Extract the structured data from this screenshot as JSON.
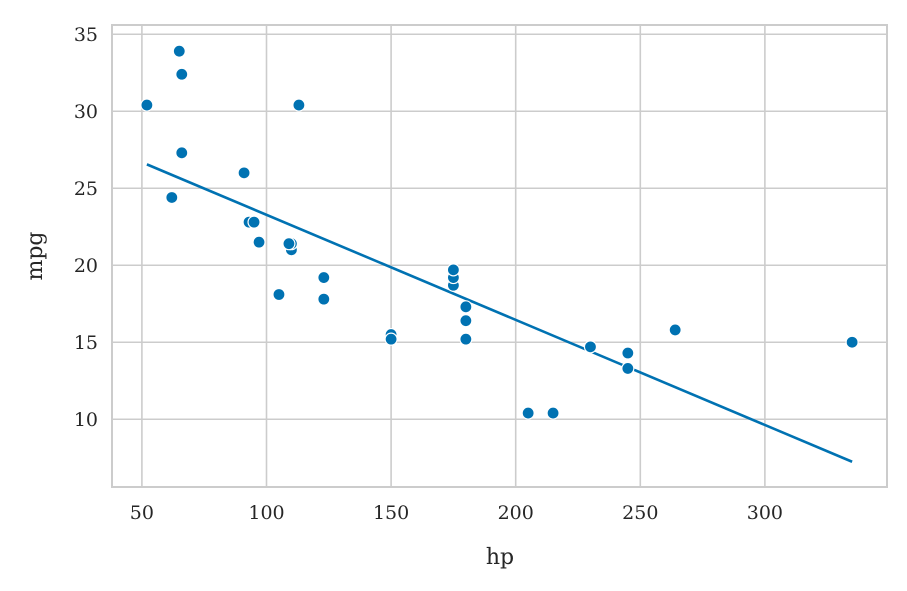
{
  "chart_data": {
    "type": "scatter",
    "title": "",
    "xlabel": "hp",
    "ylabel": "mpg",
    "xlim": [
      38,
      349
    ],
    "ylim": [
      5.6,
      35.6
    ],
    "xticks": [
      50,
      100,
      150,
      200,
      250,
      300
    ],
    "yticks": [
      10,
      15,
      20,
      25,
      30,
      35
    ],
    "grid": true,
    "legend": "none",
    "point_color": "#0072b2",
    "line_color": "#0072b2",
    "points": [
      {
        "x": 110,
        "y": 21.0
      },
      {
        "x": 110,
        "y": 21.0
      },
      {
        "x": 93,
        "y": 22.8
      },
      {
        "x": 110,
        "y": 21.4
      },
      {
        "x": 175,
        "y": 18.7
      },
      {
        "x": 105,
        "y": 18.1
      },
      {
        "x": 245,
        "y": 14.3
      },
      {
        "x": 62,
        "y": 24.4
      },
      {
        "x": 95,
        "y": 22.8
      },
      {
        "x": 123,
        "y": 19.2
      },
      {
        "x": 123,
        "y": 17.8
      },
      {
        "x": 180,
        "y": 16.4
      },
      {
        "x": 180,
        "y": 17.3
      },
      {
        "x": 180,
        "y": 15.2
      },
      {
        "x": 205,
        "y": 10.4
      },
      {
        "x": 215,
        "y": 10.4
      },
      {
        "x": 230,
        "y": 14.7
      },
      {
        "x": 66,
        "y": 32.4
      },
      {
        "x": 52,
        "y": 30.4
      },
      {
        "x": 65,
        "y": 33.9
      },
      {
        "x": 97,
        "y": 21.5
      },
      {
        "x": 150,
        "y": 15.5
      },
      {
        "x": 150,
        "y": 15.2
      },
      {
        "x": 245,
        "y": 13.3
      },
      {
        "x": 175,
        "y": 19.2
      },
      {
        "x": 66,
        "y": 27.3
      },
      {
        "x": 91,
        "y": 26.0
      },
      {
        "x": 113,
        "y": 30.4
      },
      {
        "x": 264,
        "y": 15.8
      },
      {
        "x": 175,
        "y": 19.7
      },
      {
        "x": 335,
        "y": 15.0
      },
      {
        "x": 109,
        "y": 21.4
      }
    ],
    "fit_line": {
      "x": [
        52,
        335
      ],
      "y": [
        26.55,
        7.24
      ]
    }
  }
}
